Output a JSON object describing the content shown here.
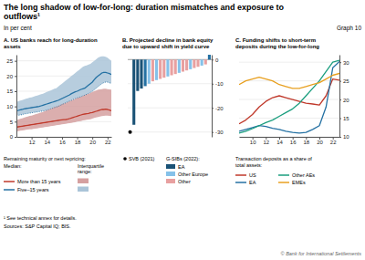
{
  "title": "The long shadow of low-for-long: duration mismatches and exposure to\noutflows¹",
  "subtitle": "In per cent",
  "annotations": [
    "Graph 10",
    "¹ See technical annex for details.",
    "Sources: S&P Capital IQ; BIS.",
    "© Bank for International Settlements"
  ],
  "chart_data": [
    {
      "type": "line",
      "title": "A. US banks reach for long-duration\nassets",
      "x": [
        10.0,
        10.25,
        10.5,
        10.75,
        11.0,
        11.25,
        11.5,
        11.75,
        12.0,
        12.25,
        12.5,
        12.75,
        13.0,
        13.25,
        13.5,
        13.75,
        14.0,
        14.25,
        14.5,
        14.75,
        15.0,
        15.25,
        15.5,
        15.75,
        16.0,
        16.25,
        16.5,
        16.75,
        17.0,
        17.25,
        17.5,
        17.75,
        18.0,
        18.25,
        18.5,
        18.75,
        19.0,
        19.25,
        19.5,
        19.75,
        20.0,
        20.25,
        20.5,
        20.75,
        21.0,
        21.25,
        21.5,
        21.75,
        22.0,
        22.25,
        22.5
      ],
      "series": [
        {
          "name": "Five–15 years",
          "type": "area",
          "color": "#aac4d8",
          "values": [
            11.5,
            11.7,
            11.9,
            12.1,
            12.3,
            12.5,
            12.7,
            12.9,
            13.0,
            13.2,
            13.4,
            13.6,
            13.8,
            14.0,
            14.2,
            14.5,
            14.8,
            15.0,
            15.2,
            15.5,
            15.8,
            16.0,
            16.5,
            17.0,
            17.5,
            18.0,
            18.5,
            19.0,
            19.5,
            20.0,
            20.5,
            21.0,
            21.5,
            22.0,
            22.5,
            23.0,
            23.3,
            23.5,
            23.8,
            24.0,
            24.5,
            25.0,
            25.5,
            26.0,
            26.3,
            26.5,
            26.5,
            26.3,
            26.0,
            25.5,
            25.0
          ],
          "lower": [
            7.0,
            7.1,
            7.2,
            7.3,
            7.5,
            7.6,
            7.7,
            7.8,
            7.9,
            8.0,
            8.1,
            8.2,
            8.3,
            8.4,
            8.5,
            8.6,
            8.8,
            9.0,
            9.2,
            9.4,
            9.6,
            9.8,
            10.0,
            10.3,
            10.6,
            10.9,
            11.2,
            11.5,
            11.8,
            12.0,
            12.3,
            12.6,
            12.8,
            13.0,
            13.2,
            13.5,
            13.7,
            14.0,
            14.3,
            14.6,
            15.0,
            15.5,
            16.0,
            16.5,
            17.0,
            17.5,
            17.8,
            18.0,
            18.0,
            17.8,
            17.5
          ]
        },
        {
          "name": "More than 15 years",
          "type": "area",
          "color": "#d5a0a0",
          "values": [
            5.5,
            5.7,
            5.9,
            6.1,
            6.3,
            6.5,
            6.7,
            6.9,
            7.0,
            7.2,
            7.4,
            7.6,
            7.8,
            8.0,
            8.2,
            8.5,
            8.8,
            9.0,
            9.2,
            9.5,
            9.8,
            10.0,
            10.2,
            10.5,
            10.8,
            11.0,
            11.2,
            11.5,
            11.8,
            12.0,
            12.2,
            12.5,
            12.8,
            13.0,
            13.2,
            13.5,
            13.8,
            14.0,
            14.2,
            14.5,
            14.8,
            15.0,
            15.2,
            15.5,
            15.6,
            15.7,
            15.8,
            15.8,
            15.7,
            15.6,
            15.5
          ],
          "lower": [
            1.8,
            1.9,
            2.0,
            2.1,
            2.2,
            2.3,
            2.4,
            2.5,
            2.5,
            2.6,
            2.7,
            2.8,
            2.9,
            3.0,
            3.1,
            3.2,
            3.3,
            3.4,
            3.5,
            3.6,
            3.7,
            3.8,
            3.9,
            4.0,
            4.1,
            4.2,
            4.3,
            4.4,
            4.5,
            4.6,
            4.7,
            4.8,
            5.0,
            5.1,
            5.2,
            5.4,
            5.5,
            5.6,
            5.7,
            5.8,
            6.0,
            6.2,
            6.4,
            6.5,
            6.7,
            6.8,
            6.9,
            7.0,
            7.0,
            6.9,
            6.8
          ]
        },
        {
          "type": "line",
          "color": "#2471a3",
          "line_style": "dotted",
          "values": [
            7.0,
            7.1,
            7.2,
            7.3,
            7.5,
            7.6,
            7.7,
            7.8,
            7.9,
            8.0,
            8.1,
            8.2,
            8.3,
            8.4,
            8.5,
            8.6,
            8.8,
            9.0,
            9.2,
            9.4,
            9.6,
            9.8,
            10.0,
            10.3,
            10.6,
            10.9,
            11.2,
            11.5,
            11.8,
            12.0,
            12.3,
            12.6,
            12.8,
            13.0,
            13.2,
            13.5,
            13.7,
            14.0,
            14.3,
            14.6,
            15.0,
            15.5,
            16.0,
            16.5,
            17.0,
            17.5,
            17.8,
            18.0,
            18.0,
            17.8,
            17.5
          ]
        },
        {
          "name": "Five–15 years",
          "type": "line",
          "color": "#2471a3",
          "values": [
            8.5,
            8.7,
            8.9,
            9.0,
            9.2,
            9.3,
            9.4,
            9.5,
            9.6,
            9.7,
            9.8,
            9.9,
            10.0,
            10.2,
            10.4,
            10.6,
            10.8,
            11.0,
            11.2,
            11.4,
            11.6,
            11.8,
            12.0,
            12.3,
            12.6,
            12.9,
            13.2,
            13.5,
            13.8,
            14.2,
            14.5,
            14.8,
            15.0,
            15.3,
            15.6,
            15.8,
            16.0,
            16.5,
            17.0,
            17.5,
            18.0,
            18.8,
            19.5,
            20.0,
            20.5,
            21.0,
            21.2,
            21.2,
            21.0,
            20.8,
            20.5
          ]
        },
        {
          "name": "More than 15 years",
          "type": "line",
          "color": "#c0392b",
          "values": [
            3.2,
            3.3,
            3.4,
            3.5,
            3.6,
            3.7,
            3.8,
            3.9,
            4.0,
            4.1,
            4.2,
            4.3,
            4.4,
            4.5,
            4.6,
            4.7,
            4.8,
            4.9,
            5.0,
            5.1,
            5.2,
            5.3,
            5.4,
            5.5,
            5.6,
            5.65,
            5.7,
            5.8,
            6.0,
            6.2,
            6.4,
            6.6,
            6.8,
            7.0,
            7.2,
            7.4,
            7.5,
            7.6,
            7.7,
            7.9,
            8.0,
            8.2,
            8.4,
            8.6,
            8.8,
            9.0,
            9.0,
            9.1,
            9.0,
            8.8,
            8.6
          ]
        }
      ],
      "xlim": [
        10.0,
        22.5
      ],
      "ylim": [
        0,
        27
      ],
      "xticks": [
        12,
        14,
        16,
        18,
        20,
        22
      ],
      "yticks": [
        0,
        5,
        10,
        15,
        20,
        25
      ],
      "grid": true,
      "annotations": [
        "Remaining maturity or next repricing:",
        "Median:",
        "Interquartile\nrange:"
      ]
    },
    {
      "type": "bar",
      "title": "B. Projected decline in bank equity\ndue to upward shift in yield curve",
      "categories": [
        null,
        null,
        null,
        null,
        null,
        null,
        null,
        null,
        null,
        null,
        null,
        null,
        null,
        null,
        null,
        null,
        null,
        null,
        null,
        null,
        null,
        null
      ],
      "series": [
        {
          "name": "SVB (2021)",
          "type": "scatter",
          "color": "black",
          "values": [
            -30,
            null,
            null,
            null,
            null,
            null,
            null,
            null,
            null,
            null,
            null,
            null,
            null,
            null,
            null,
            null,
            null,
            null,
            null,
            null,
            null,
            null
          ]
        },
        {
          "name": "G-SIBs (2022):",
          "type": "bar",
          "values": [
            null,
            -27,
            -13,
            -12,
            -11,
            -10,
            -9,
            -8.5,
            -8,
            -7.5,
            -7,
            -6.5,
            -6,
            -5.5,
            -5,
            -4.5,
            -4,
            -3.5,
            -3,
            -2.5,
            -2,
            2
          ],
          "colors": [
            null,
            "#1a5276",
            "#1a5276",
            "#1a5276",
            "#2471a3",
            "#85c1e9",
            "#e8a0a0",
            "#85c1e9",
            "#e8a0a0",
            "#e8a0a0",
            "#85c1e9",
            "#e8a0a0",
            "#e8a0a0",
            "#85c1e9",
            "#e8a0a0",
            "#e8a0a0",
            "#85c1e9",
            "#e8a0a0",
            "#e8a0a0",
            "#85c1e9",
            "#e8a0a0",
            "#2471a3"
          ]
        }
      ],
      "legend_items": [
        {
          "name": "EA",
          "color": "#1a5276"
        },
        {
          "name": "Other Europe",
          "color": "#85c1e9"
        },
        {
          "name": "Other",
          "color": "#e8a0a0"
        }
      ],
      "ylim": [
        -32,
        2
      ],
      "yticks": [
        0,
        -10,
        -20,
        -30
      ],
      "grid": true,
      "tick_labels": "y"
    },
    {
      "type": "line",
      "title": "C. Funding shifts to short-term\ndeposits during the low-for-long",
      "x": [
        8,
        9,
        10,
        11,
        12,
        13,
        14,
        15,
        16,
        17,
        18,
        19,
        20,
        21,
        22,
        23
      ],
      "series": [
        {
          "name": "US",
          "color": "#c0392b",
          "values": [
            13.5,
            14.5,
            16.0,
            18.0,
            19.5,
            20.5,
            21.0,
            20.5,
            20.0,
            19.5,
            19.0,
            18.8,
            18.5,
            21.0,
            25.5,
            25.2
          ]
        },
        {
          "name": "EA",
          "color": "#2471a3",
          "values": [
            11.5,
            12.0,
            12.5,
            13.0,
            12.8,
            12.3,
            12.0,
            11.5,
            11.2,
            11.0,
            11.2,
            12.0,
            13.0,
            18.0,
            28.5,
            30.2
          ]
        },
        {
          "name": "Other AEs",
          "color": "#1a9e7e",
          "values": [
            11.0,
            11.5,
            12.2,
            13.0,
            13.8,
            14.5,
            15.5,
            16.5,
            17.5,
            19.0,
            21.0,
            23.0,
            25.0,
            27.5,
            30.0,
            30.5
          ]
        },
        {
          "name": "EMEs",
          "color": "#e8a020",
          "values": [
            24.0,
            25.0,
            25.5,
            26.0,
            25.5,
            25.0,
            24.0,
            23.5,
            23.0,
            23.0,
            23.5,
            24.0,
            24.5,
            25.5,
            26.5,
            27.0
          ]
        }
      ],
      "xlim": [
        8,
        23
      ],
      "ylim": [
        10,
        32
      ],
      "xticks": [
        10,
        12,
        14,
        16,
        18,
        20,
        22
      ],
      "yticks": [
        10,
        15,
        20,
        25,
        30
      ],
      "grid": true,
      "annotations": [
        "Transaction deposits as a share of\ntotal assets:"
      ]
    }
  ]
}
